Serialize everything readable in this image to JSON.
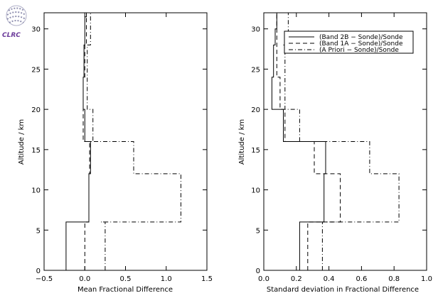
{
  "logo": {
    "text": "CLRC",
    "color": "#6b3a9a"
  },
  "chart_data": [
    {
      "type": "line",
      "xlabel": "Mean Fractional Difference",
      "ylabel": "Altitude / km",
      "xlim": [
        -0.5,
        1.5
      ],
      "ylim": [
        0,
        32
      ],
      "xticks": [
        -0.5,
        0.0,
        0.5,
        1.0,
        1.5
      ],
      "xtick_labels": [
        "−0.5",
        "0.0",
        "0.5",
        "1.0",
        "1.5"
      ],
      "yticks": [
        0,
        5,
        10,
        15,
        20,
        25,
        30
      ],
      "ytick_labels": [
        "0",
        "5",
        "10",
        "15",
        "20",
        "25",
        "30"
      ],
      "grid": false,
      "series": [
        {
          "name": "(Band 2B − Sonde)/Sonde",
          "dash": "solid",
          "x": [
            -0.23,
            -0.23,
            0.05,
            0.05,
            0.07,
            0.07,
            0.08,
            0.08,
            0.0,
            0.0,
            -0.02,
            -0.02,
            -0.01,
            -0.01,
            0.0,
            0.0,
            0.02,
            0.02,
            0.0
          ],
          "y": [
            0,
            6,
            6,
            12,
            12,
            16,
            16,
            16,
            16,
            20,
            20,
            24,
            24,
            28,
            28,
            31.5,
            31.5,
            32,
            32
          ]
        },
        {
          "name": "(Band 1A − Sonde)/Sonde",
          "dash": "dash",
          "x": [
            0.0,
            0.0,
            0.05,
            0.05,
            0.06,
            0.06,
            -0.02,
            -0.02,
            0.0,
            0.0,
            0.02,
            0.02
          ],
          "y": [
            0,
            6,
            6,
            12,
            12,
            16,
            16,
            24,
            24,
            28,
            28,
            32
          ]
        },
        {
          "name": "(A Priori − Sonde)/Sonde",
          "dash": "dashdot",
          "x": [
            0.25,
            0.25,
            0.2,
            0.2,
            1.18,
            1.18,
            0.6,
            0.6,
            0.08,
            0.08,
            0.1,
            0.1,
            0.03,
            0.03,
            0.07,
            0.07
          ],
          "y": [
            0,
            6,
            6,
            6,
            6,
            12,
            12,
            16,
            16,
            16,
            16,
            20,
            20,
            28,
            28,
            32
          ]
        }
      ]
    },
    {
      "type": "line",
      "xlabel": "Standard deviation in Fractional Difference",
      "ylabel": "Altitude / km",
      "xlim": [
        0.0,
        1.0
      ],
      "ylim": [
        0,
        32
      ],
      "xticks": [
        0.0,
        0.2,
        0.4,
        0.6,
        0.8,
        1.0
      ],
      "xtick_labels": [
        "0.0",
        "0.2",
        "0.4",
        "0.6",
        "0.8",
        "1.0"
      ],
      "yticks": [
        0,
        5,
        10,
        15,
        20,
        25,
        30
      ],
      "ytick_labels": [
        "0",
        "5",
        "10",
        "15",
        "20",
        "25",
        "30"
      ],
      "grid": false,
      "legend": {
        "position": "top-right",
        "entries": [
          "(Band 2B − Sonde)/Sonde",
          "(Band 1A − Sonde)/Sonde",
          "(A Priori − Sonde)/Sonde"
        ]
      },
      "series": [
        {
          "name": "(Band 2B − Sonde)/Sonde",
          "dash": "solid",
          "x": [
            0.22,
            0.22,
            0.37,
            0.37,
            0.38,
            0.38,
            0.24,
            0.24,
            0.12,
            0.12,
            0.05,
            0.05,
            0.06,
            0.06,
            0.07,
            0.07,
            0.08,
            0.08
          ],
          "y": [
            0,
            6,
            6,
            12,
            12,
            16,
            16,
            16,
            16,
            20,
            20,
            24,
            24,
            28,
            28,
            30,
            30,
            32
          ]
        },
        {
          "name": "(Band 1A − Sonde)/Sonde",
          "dash": "dash",
          "x": [
            0.27,
            0.27,
            0.47,
            0.47,
            0.31,
            0.31,
            0.13,
            0.13,
            0.1,
            0.1,
            0.08,
            0.08
          ],
          "y": [
            0,
            6,
            6,
            12,
            12,
            16,
            16,
            20,
            20,
            24,
            24,
            32
          ]
        },
        {
          "name": "(A Priori − Sonde)/Sonde",
          "dash": "dashdot",
          "x": [
            0.36,
            0.36,
            0.48,
            0.48,
            0.83,
            0.83,
            0.65,
            0.65,
            0.22,
            0.22,
            0.13,
            0.13,
            0.12,
            0.12,
            0.15,
            0.15
          ],
          "y": [
            0,
            6,
            6,
            6,
            6,
            12,
            12,
            16,
            16,
            20,
            20,
            28,
            28,
            28,
            28,
            32
          ]
        }
      ]
    }
  ]
}
